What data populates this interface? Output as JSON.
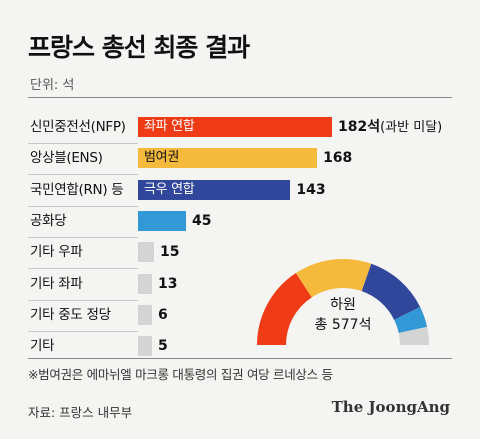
{
  "title": "프랑스 총선 최종 결과",
  "unit": "단위: 석",
  "footnote": "※범여권은 에마뉘엘 마크롱 대통령의 집권 여당 르네상스 등",
  "source": "자료: 프랑스 내무부",
  "brand": "The JoongAng",
  "center_label": [
    "하원",
    "총 577석"
  ],
  "colors": {
    "left": "#f03c16",
    "center": "#f5b93c",
    "far_right": "#31479c",
    "republicans": "#3299d6",
    "other": "#d4d4d4"
  },
  "chart_data": {
    "type": "bar",
    "orientation": "horizontal",
    "unit": "석",
    "total": 577,
    "xlim": [
      0,
      190
    ],
    "categories": [
      "신민중전선(NFP)",
      "앙상블(ENS)",
      "국민연합(RN) 등",
      "공화당",
      "기타 우파",
      "기타 좌파",
      "기타 중도 정당",
      "기타"
    ],
    "values": [
      182,
      168,
      143,
      45,
      15,
      13,
      6,
      5
    ],
    "value_labels": [
      "182석",
      "168",
      "143",
      "45",
      "15",
      "13",
      "6",
      "5"
    ],
    "value_notes": [
      "(과반 미달)",
      "",
      "",
      "",
      "",
      "",
      "",
      ""
    ],
    "bar_tags": [
      "좌파 연합",
      "범여권",
      "극우 연합",
      "",
      "",
      "",
      "",
      ""
    ],
    "bar_colors": [
      "#f03c16",
      "#f5b93c",
      "#31479c",
      "#3299d6",
      "#d4d4d4",
      "#d4d4d4",
      "#d4d4d4",
      "#d4d4d4"
    ],
    "tag_colors": [
      "#ffffff",
      "#111111",
      "#ffffff",
      "",
      "",
      "",
      "",
      ""
    ],
    "donut": {
      "type": "pie",
      "style": "semicircle",
      "center_text": [
        "하원",
        "총 577석"
      ],
      "segments": [
        {
          "value": 182,
          "color": "#f03c16"
        },
        {
          "value": 168,
          "color": "#f5b93c"
        },
        {
          "value": 143,
          "color": "#31479c"
        },
        {
          "value": 45,
          "color": "#3299d6"
        },
        {
          "value": 39,
          "color": "#d4d4d4"
        }
      ]
    }
  }
}
